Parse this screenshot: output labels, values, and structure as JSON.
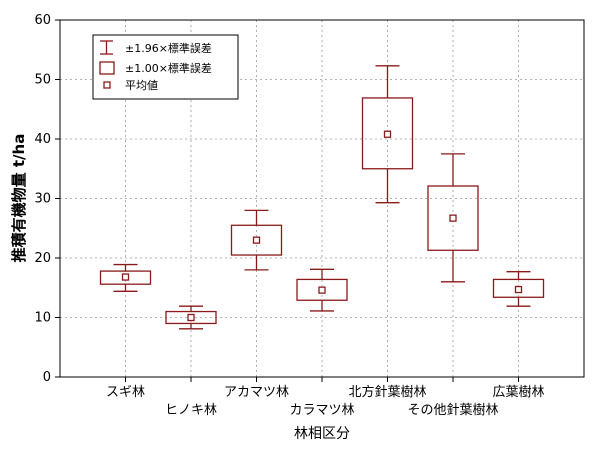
{
  "chart_data": {
    "type": "boxplot",
    "xlabel": "林相区分",
    "ylabel": "推積有機物量 t/ha",
    "ylim": [
      0,
      60
    ],
    "yticks": [
      0,
      10,
      20,
      30,
      40,
      50,
      60
    ],
    "grid": true,
    "legend_position": "top-left",
    "colors": {
      "series": "#8b1a1a",
      "grid": "#9a9a9a",
      "axis": "#000000"
    },
    "legend": [
      {
        "symbol": "whisker",
        "label": "±1.96×標準誤差"
      },
      {
        "symbol": "box",
        "label": "±1.00×標準誤差"
      },
      {
        "symbol": "mean",
        "label": "平均値"
      }
    ],
    "categories": [
      "スギ林",
      "ヒノキ林",
      "アカマツ林",
      "カラマツ林",
      "北方針葉樹林",
      "その他針葉樹林",
      "広葉樹林"
    ],
    "series": [
      {
        "category": "スギ林",
        "mean": 16.8,
        "box_low": 15.6,
        "box_high": 17.8,
        "whisker_low": 14.4,
        "whisker_high": 18.9
      },
      {
        "category": "ヒノキ林",
        "mean": 10.0,
        "box_low": 9.0,
        "box_high": 11.0,
        "whisker_low": 8.1,
        "whisker_high": 11.9
      },
      {
        "category": "アカマツ林",
        "mean": 23.0,
        "box_low": 20.5,
        "box_high": 25.5,
        "whisker_low": 18.0,
        "whisker_high": 28.0
      },
      {
        "category": "カラマツ林",
        "mean": 14.6,
        "box_low": 12.9,
        "box_high": 16.4,
        "whisker_low": 11.1,
        "whisker_high": 18.1
      },
      {
        "category": "北方針葉樹林",
        "mean": 40.8,
        "box_low": 35.0,
        "box_high": 46.9,
        "whisker_low": 29.3,
        "whisker_high": 52.3
      },
      {
        "category": "その他針葉樹林",
        "mean": 26.7,
        "box_low": 21.3,
        "box_high": 32.1,
        "whisker_low": 16.0,
        "whisker_high": 37.5
      },
      {
        "category": "広葉樹林",
        "mean": 14.7,
        "box_low": 13.4,
        "box_high": 16.4,
        "whisker_low": 11.9,
        "whisker_high": 17.7
      }
    ]
  }
}
